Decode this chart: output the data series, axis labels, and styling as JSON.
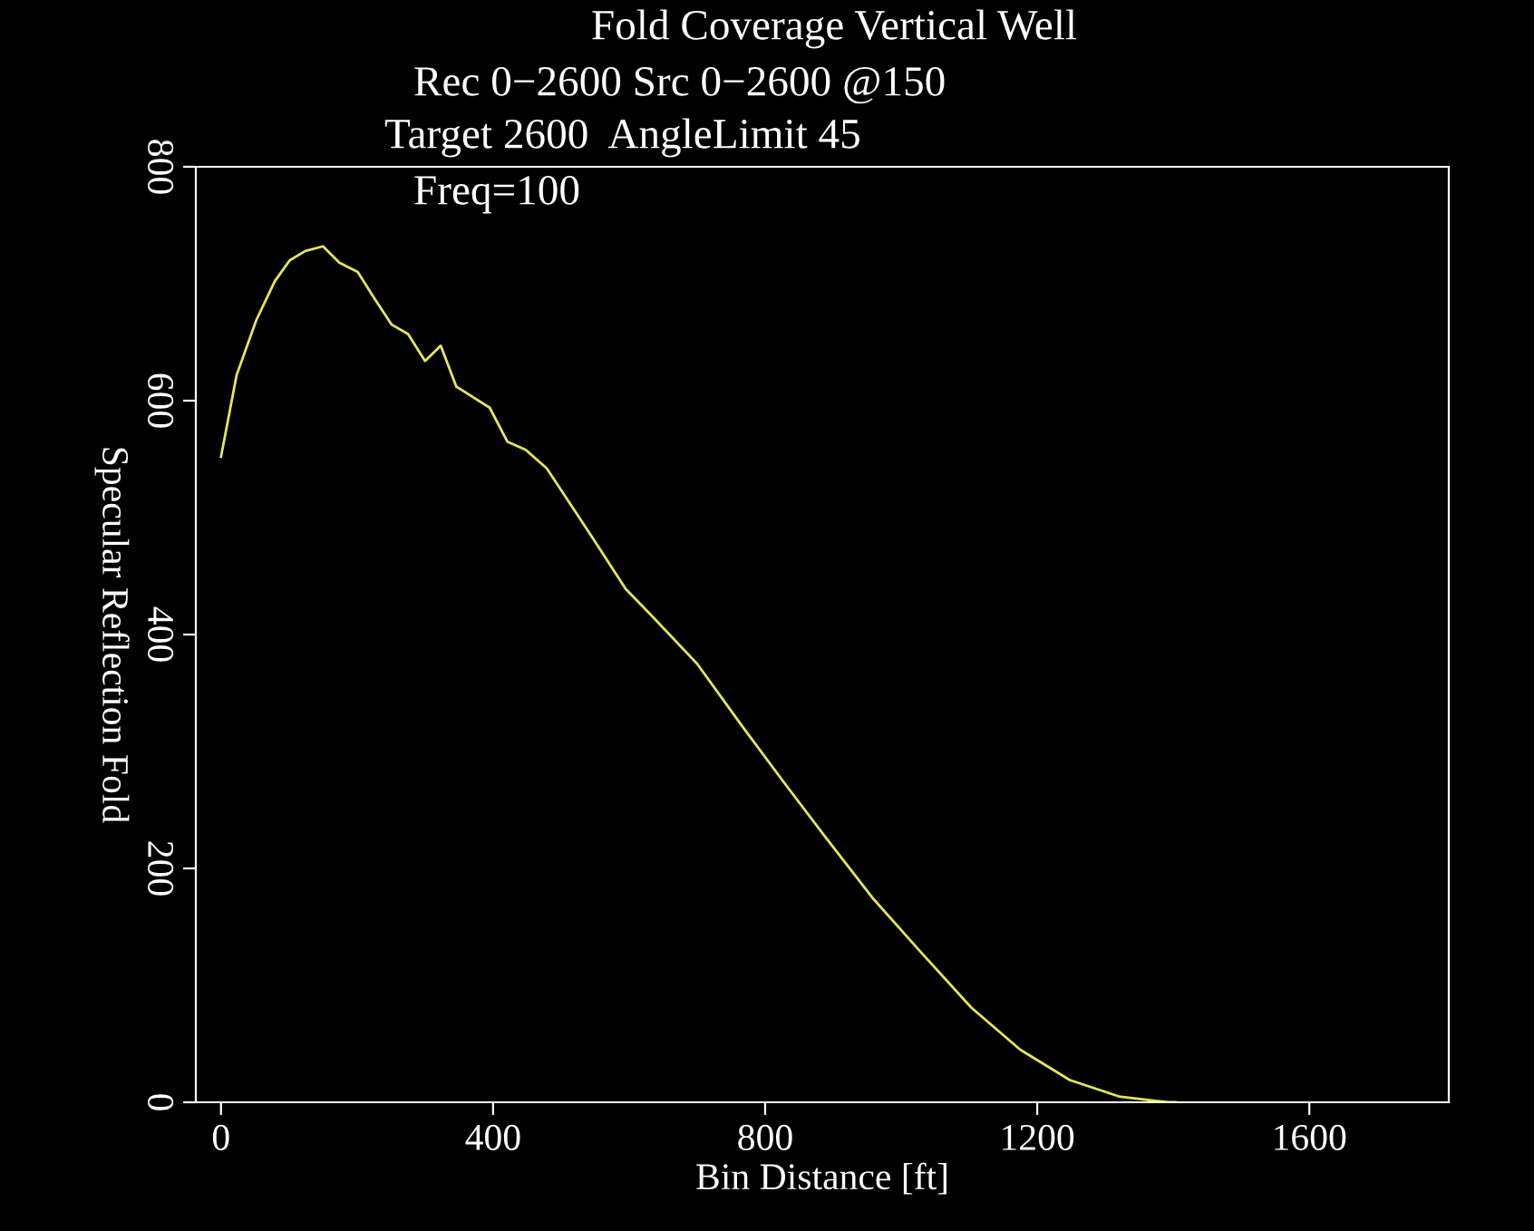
{
  "chart_data": {
    "type": "line",
    "title": "Fold Coverage Vertical Well",
    "annotations": [
      "Rec 0−2600 Src 0−2600 @150",
      "Target 2600  AngleLimit 45",
      "Freq=100"
    ],
    "xlabel": "Bin Distance [ft]",
    "ylabel": "Specular Reflection Fold",
    "x": [
      0,
      23,
      52,
      79,
      101,
      124,
      150,
      174,
      201,
      226,
      251,
      275,
      300,
      323,
      346,
      395,
      421,
      448,
      479,
      546,
      595,
      630,
      700,
      767,
      827,
      887,
      959,
      1031,
      1103,
      1175,
      1248,
      1320,
      1392,
      1403
    ],
    "series": [
      {
        "color": "#e6e65a",
        "values": [
          552,
          622,
          669,
          702,
          720,
          728,
          732,
          718,
          710,
          687,
          665,
          657,
          634,
          647,
          612,
          594,
          565,
          558,
          542,
          483,
          439,
          418,
          375,
          321,
          274,
          228,
          174,
          127,
          81,
          45,
          19,
          5,
          0,
          0
        ]
      }
    ],
    "xlim": [
      -37,
      1805
    ],
    "ylim": [
      0,
      800
    ],
    "xticks": [
      0,
      400,
      800,
      1200,
      1600
    ],
    "yticks": [
      0,
      200,
      400,
      600,
      800
    ],
    "grid": false,
    "legend": false
  }
}
